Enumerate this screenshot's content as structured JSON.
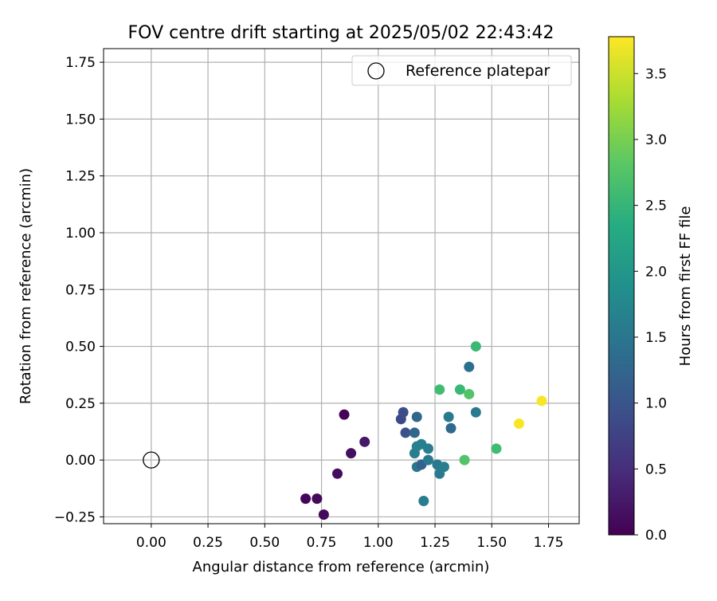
{
  "chart_data": {
    "type": "scatter",
    "title": "FOV centre drift starting at 2025/05/02 22:43:42",
    "xlabel": "Angular distance from reference (arcmin)",
    "ylabel": "Rotation from reference (arcmin)",
    "xlim": [
      -0.21,
      1.885
    ],
    "ylim": [
      -0.28,
      1.81
    ],
    "xticks": [
      0.0,
      0.25,
      0.5,
      0.75,
      1.0,
      1.25,
      1.5,
      1.75
    ],
    "xtick_labels": [
      "0.00",
      "0.25",
      "0.50",
      "0.75",
      "1.00",
      "1.25",
      "1.50",
      "1.75"
    ],
    "yticks": [
      -0.25,
      0.0,
      0.25,
      0.5,
      0.75,
      1.0,
      1.25,
      1.5,
      1.75
    ],
    "ytick_labels": [
      "−0.25",
      "0.00",
      "0.25",
      "0.50",
      "0.75",
      "1.00",
      "1.25",
      "1.50",
      "1.75"
    ],
    "grid": true,
    "legend": {
      "location": "top-right",
      "entries": [
        "Reference platepar"
      ]
    },
    "reference_point": {
      "name": "Reference platepar",
      "x": 0.0,
      "y": 0.0,
      "marker": "open-circle",
      "color": "#000000"
    },
    "colorbar": {
      "label": "Hours from first FF file",
      "range": [
        0.0,
        3.78
      ],
      "ticks": [
        0.0,
        0.5,
        1.0,
        1.5,
        2.0,
        2.5,
        3.0,
        3.5
      ],
      "tick_labels": [
        "0.0",
        "0.5",
        "1.0",
        "1.5",
        "2.0",
        "2.5",
        "3.0",
        "3.5"
      ],
      "colormap": "viridis"
    },
    "points": [
      {
        "x": 0.68,
        "y": -0.17,
        "hours": 0.05
      },
      {
        "x": 0.73,
        "y": -0.17,
        "hours": 0.08
      },
      {
        "x": 0.76,
        "y": -0.24,
        "hours": 0.1
      },
      {
        "x": 0.82,
        "y": -0.06,
        "hours": 0.13
      },
      {
        "x": 0.85,
        "y": 0.2,
        "hours": 0.02
      },
      {
        "x": 0.88,
        "y": 0.03,
        "hours": 0.15
      },
      {
        "x": 0.94,
        "y": 0.08,
        "hours": 0.25
      },
      {
        "x": 1.1,
        "y": 0.18,
        "hours": 0.85
      },
      {
        "x": 1.11,
        "y": 0.21,
        "hours": 0.9
      },
      {
        "x": 1.12,
        "y": 0.12,
        "hours": 0.95
      },
      {
        "x": 1.16,
        "y": 0.12,
        "hours": 1.25
      },
      {
        "x": 1.16,
        "y": 0.03,
        "hours": 1.6
      },
      {
        "x": 1.17,
        "y": 0.19,
        "hours": 1.25
      },
      {
        "x": 1.17,
        "y": 0.06,
        "hours": 1.65
      },
      {
        "x": 1.17,
        "y": -0.03,
        "hours": 1.5
      },
      {
        "x": 1.19,
        "y": 0.07,
        "hours": 1.65
      },
      {
        "x": 1.19,
        "y": -0.02,
        "hours": 1.2
      },
      {
        "x": 1.2,
        "y": -0.18,
        "hours": 1.6
      },
      {
        "x": 1.22,
        "y": 0.05,
        "hours": 1.6
      },
      {
        "x": 1.22,
        "y": 0.0,
        "hours": 1.55
      },
      {
        "x": 1.26,
        "y": -0.02,
        "hours": 1.55
      },
      {
        "x": 1.27,
        "y": -0.06,
        "hours": 1.55
      },
      {
        "x": 1.29,
        "y": -0.03,
        "hours": 1.6
      },
      {
        "x": 1.27,
        "y": 0.31,
        "hours": 2.6
      },
      {
        "x": 1.31,
        "y": 0.19,
        "hours": 1.55
      },
      {
        "x": 1.32,
        "y": 0.14,
        "hours": 1.3
      },
      {
        "x": 1.36,
        "y": 0.31,
        "hours": 2.55
      },
      {
        "x": 1.38,
        "y": 0.0,
        "hours": 2.75
      },
      {
        "x": 1.4,
        "y": 0.29,
        "hours": 2.75
      },
      {
        "x": 1.4,
        "y": 0.41,
        "hours": 1.4
      },
      {
        "x": 1.43,
        "y": 0.21,
        "hours": 1.55
      },
      {
        "x": 1.43,
        "y": 0.5,
        "hours": 2.55
      },
      {
        "x": 1.52,
        "y": 0.05,
        "hours": 2.6
      },
      {
        "x": 1.62,
        "y": 0.16,
        "hours": 3.75
      },
      {
        "x": 1.72,
        "y": 0.26,
        "hours": 3.75
      }
    ]
  }
}
